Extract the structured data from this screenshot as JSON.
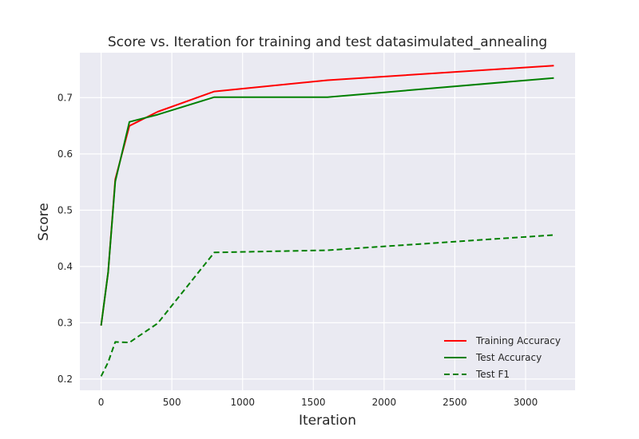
{
  "chart_data": {
    "type": "line",
    "title": "Score vs. Iteration for training and test datasimulated_annealing",
    "xlabel": "Iteration",
    "ylabel": "Score",
    "xlim": [
      -150,
      3350
    ],
    "ylim": [
      0.18,
      0.78
    ],
    "xticks": [
      0,
      500,
      1000,
      1500,
      2000,
      2500,
      3000
    ],
    "yticks": [
      0.2,
      0.3,
      0.4,
      0.5,
      0.6,
      0.7
    ],
    "grid": true,
    "legend_position": "lower-right",
    "series": [
      {
        "name": "Training Accuracy",
        "color": "#ff0000",
        "style": "solid",
        "x": [
          0,
          50,
          100,
          200,
          400,
          800,
          1600,
          3200
        ],
        "y": [
          0.295,
          0.39,
          0.555,
          0.65,
          0.675,
          0.711,
          0.731,
          0.757
        ]
      },
      {
        "name": "Test Accuracy",
        "color": "#008000",
        "style": "solid",
        "x": [
          0,
          50,
          100,
          200,
          400,
          800,
          1600,
          3200
        ],
        "y": [
          0.295,
          0.39,
          0.551,
          0.657,
          0.67,
          0.701,
          0.701,
          0.735
        ]
      },
      {
        "name": "Test F1",
        "color": "#008000",
        "style": "dashed",
        "x": [
          0,
          50,
          100,
          200,
          400,
          800,
          1600,
          3200
        ],
        "y": [
          0.205,
          0.23,
          0.266,
          0.265,
          0.299,
          0.425,
          0.429,
          0.456
        ]
      }
    ]
  }
}
